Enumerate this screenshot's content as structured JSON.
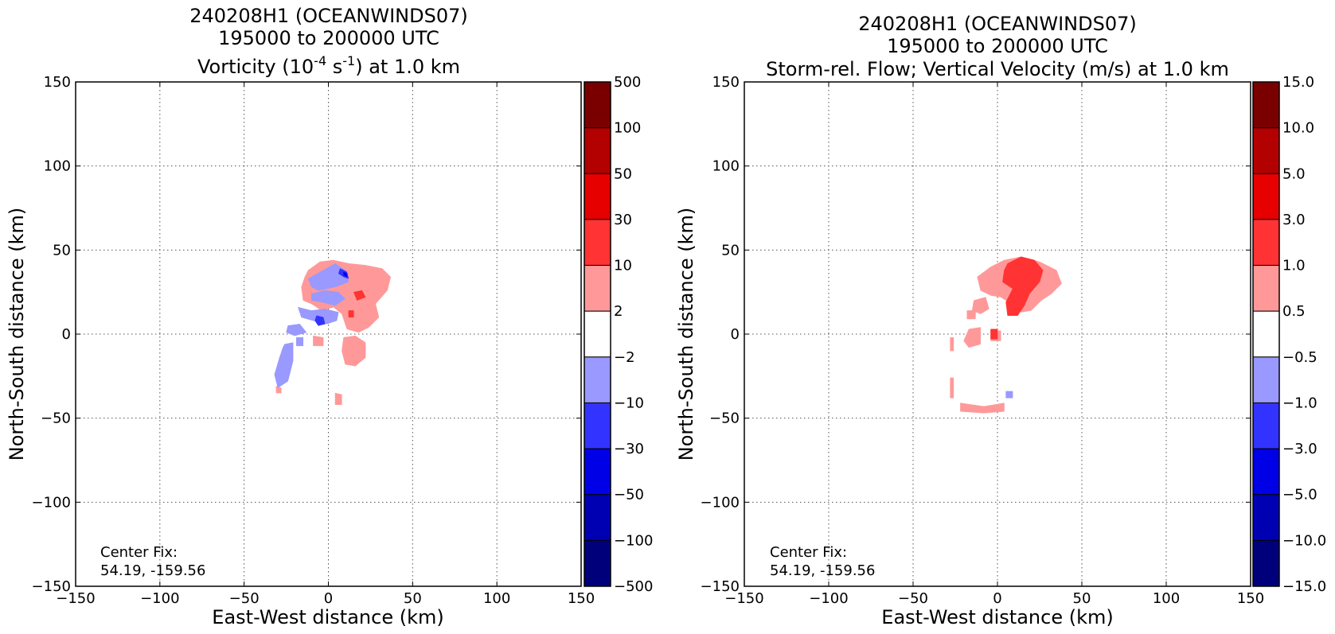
{
  "chart_data": [
    {
      "type": "heatmap",
      "title_lines": [
        "240208H1 (OCEANWINDS07)",
        "195000 to 200000 UTC"
      ],
      "title_line3": {
        "before": "Vorticity (10",
        "sup1": "-4",
        "middle": " s",
        "sup2": "-1",
        "after": ") at 1.0 km"
      },
      "xlabel": "East-West distance (km)",
      "ylabel": "North-South distance (km)",
      "xlim": [
        -150,
        150
      ],
      "ylim": [
        -150,
        150
      ],
      "xticks": [
        "−150",
        "−100",
        "−50",
        "0",
        "50",
        "100",
        "150"
      ],
      "yticks": [
        "150",
        "100",
        "50",
        "0",
        "−50",
        "−100",
        "−150"
      ],
      "grid": true,
      "annotation_lines": [
        "Center Fix:",
        "54.19, -159.56"
      ],
      "colorbar_labels": [
        "500",
        "100",
        "50",
        "30",
        "10",
        "2",
        "−2",
        "−10",
        "−30",
        "−50",
        "−100",
        "−500"
      ],
      "colorbar_colors": [
        "#7a0000",
        "#b30000",
        "#e60000",
        "#ff3333",
        "#ff9999",
        "#ffffff",
        "#9999ff",
        "#3333ff",
        "#0000e6",
        "#0000b3",
        "#00007a"
      ],
      "regions": [
        {
          "level": "2 to 10",
          "color": "#ff9999",
          "points": [
            [
              -12,
              38
            ],
            [
              -5,
              43
            ],
            [
              3,
              44
            ],
            [
              12,
              42
            ],
            [
              22,
              41
            ],
            [
              32,
              39
            ],
            [
              37,
              34
            ],
            [
              35,
              26
            ],
            [
              28,
              18
            ],
            [
              30,
              10
            ],
            [
              24,
              4
            ],
            [
              18,
              1
            ],
            [
              11,
              3
            ],
            [
              8,
              12
            ],
            [
              3,
              16
            ],
            [
              -4,
              14
            ],
            [
              -10,
              18
            ],
            [
              -15,
              20
            ],
            [
              -16,
              28
            ],
            [
              -14,
              34
            ]
          ]
        },
        {
          "level": "2 to 10",
          "color": "#ff9999",
          "points": [
            [
              9,
              -2
            ],
            [
              16,
              -1
            ],
            [
              22,
              -5
            ],
            [
              22,
              -14
            ],
            [
              16,
              -19
            ],
            [
              10,
              -18
            ],
            [
              8,
              -10
            ]
          ]
        },
        {
          "level": "2 to 10",
          "color": "#ff9999",
          "points": [
            [
              -9,
              -1
            ],
            [
              -3,
              -2
            ],
            [
              -3,
              -7
            ],
            [
              -9,
              -7
            ]
          ]
        },
        {
          "level": "2 to 10",
          "color": "#ff9999",
          "points": [
            [
              4,
              -35
            ],
            [
              8,
              -36
            ],
            [
              8,
              -42
            ],
            [
              4,
              -42
            ]
          ]
        },
        {
          "level": "2 to 10",
          "color": "#ff9999",
          "points": [
            [
              -31,
              -31
            ],
            [
              -28,
              -32
            ],
            [
              -28,
              -35
            ],
            [
              -31,
              -35
            ]
          ]
        },
        {
          "level": "10 to 30",
          "color": "#ff3333",
          "points": [
            [
              15,
              25
            ],
            [
              20,
              26
            ],
            [
              22,
              22
            ],
            [
              17,
              20
            ]
          ]
        },
        {
          "level": "10 to 30",
          "color": "#ff3333",
          "points": [
            [
              12,
              14
            ],
            [
              15,
              14
            ],
            [
              15,
              10
            ],
            [
              12,
              10
            ]
          ]
        },
        {
          "level": "-10 to -2",
          "color": "#9999ff",
          "points": [
            [
              -12,
              33
            ],
            [
              -3,
              38
            ],
            [
              4,
              42
            ],
            [
              10,
              38
            ],
            [
              12,
              31
            ],
            [
              4,
              28
            ],
            [
              -6,
              26
            ],
            [
              -10,
              28
            ]
          ]
        },
        {
          "level": "-10 to -2",
          "color": "#9999ff",
          "points": [
            [
              -10,
              24
            ],
            [
              -2,
              26
            ],
            [
              6,
              25
            ],
            [
              10,
              21
            ],
            [
              4,
              17
            ],
            [
              -4,
              19
            ],
            [
              -10,
              20
            ]
          ]
        },
        {
          "level": "-10 to -2",
          "color": "#9999ff",
          "points": [
            [
              -18,
              16
            ],
            [
              -10,
              14
            ],
            [
              -2,
              15
            ],
            [
              6,
              13
            ],
            [
              5,
              8
            ],
            [
              -1,
              6
            ],
            [
              -9,
              8
            ],
            [
              -16,
              10
            ]
          ]
        },
        {
          "level": "-10 to -2",
          "color": "#9999ff",
          "points": [
            [
              -24,
              5
            ],
            [
              -17,
              6
            ],
            [
              -13,
              1
            ],
            [
              -20,
              -1
            ],
            [
              -25,
              1
            ]
          ]
        },
        {
          "level": "-10 to -2",
          "color": "#9999ff",
          "points": [
            [
              -26,
              -6
            ],
            [
              -21,
              -5
            ],
            [
              -21,
              -16
            ],
            [
              -24,
              -28
            ],
            [
              -30,
              -32
            ],
            [
              -32,
              -24
            ],
            [
              -29,
              -14
            ],
            [
              -27,
              -8
            ]
          ]
        },
        {
          "level": "-10 to -2",
          "color": "#9999ff",
          "points": [
            [
              -19,
              -2
            ],
            [
              -15,
              -2
            ],
            [
              -15,
              -7
            ],
            [
              -19,
              -7
            ]
          ]
        },
        {
          "level": "-30 to -10",
          "color": "#3333ff",
          "points": [
            [
              7,
              39
            ],
            [
              11,
              37
            ],
            [
              12,
              33
            ],
            [
              9,
              34
            ],
            [
              6,
              36
            ]
          ]
        },
        {
          "level": "-30 to -10",
          "color": "#3333ff",
          "points": [
            [
              -7,
              11
            ],
            [
              -3,
              10
            ],
            [
              -2,
              6
            ],
            [
              -6,
              5
            ],
            [
              -8,
              8
            ]
          ]
        },
        {
          "level": "-50 to -30",
          "color": "#0000e6",
          "points": [
            [
              9,
              37
            ],
            [
              11,
              36
            ],
            [
              11,
              34
            ],
            [
              9,
              35
            ]
          ]
        }
      ]
    },
    {
      "type": "heatmap",
      "title_lines": [
        "240208H1 (OCEANWINDS07)",
        "195000 to 200000 UTC",
        "Storm-rel. Flow; Vertical Velocity (m/s) at 1.0 km"
      ],
      "xlabel": "East-West distance (km)",
      "ylabel": "North-South distance (km)",
      "xlim": [
        -150,
        150
      ],
      "ylim": [
        -150,
        150
      ],
      "xticks": [
        "−150",
        "−100",
        "−50",
        "0",
        "50",
        "100",
        "150"
      ],
      "yticks": [
        "150",
        "100",
        "50",
        "0",
        "−50",
        "−100",
        "−150"
      ],
      "grid": true,
      "annotation_lines": [
        "Center Fix:",
        "54.19, -159.56"
      ],
      "colorbar_labels": [
        "15.0",
        "10.0",
        "5.0",
        "3.0",
        "1.0",
        "0.5",
        "−0.5",
        "−1.0",
        "−3.0",
        "−5.0",
        "−10.0",
        "−15.0"
      ],
      "colorbar_colors": [
        "#7a0000",
        "#b30000",
        "#e60000",
        "#ff3333",
        "#ff9999",
        "#ffffff",
        "#9999ff",
        "#3333ff",
        "#0000e6",
        "#0000b3",
        "#00007a"
      ],
      "regions": [
        {
          "level": "0.5 to 1.0",
          "color": "#ff9999",
          "points": [
            [
              -12,
              34
            ],
            [
              -4,
              40
            ],
            [
              4,
              44
            ],
            [
              14,
              46
            ],
            [
              25,
              43
            ],
            [
              35,
              38
            ],
            [
              38,
              30
            ],
            [
              32,
              24
            ],
            [
              26,
              20
            ],
            [
              20,
              14
            ],
            [
              14,
              13
            ],
            [
              8,
              18
            ],
            [
              2,
              22
            ],
            [
              -4,
              23
            ],
            [
              -10,
              26
            ]
          ]
        },
        {
          "level": "0.5 to 1.0",
          "color": "#ff9999",
          "points": [
            [
              -14,
              20
            ],
            [
              -7,
              22
            ],
            [
              -5,
              15
            ],
            [
              -10,
              12
            ],
            [
              -15,
              14
            ]
          ]
        },
        {
          "level": "0.5 to 1.0",
          "color": "#ff9999",
          "points": [
            [
              -18,
              14
            ],
            [
              -13,
              14
            ],
            [
              -13,
              9
            ],
            [
              -18,
              9
            ]
          ]
        },
        {
          "level": "0.5 to 1.0",
          "color": "#ff9999",
          "points": [
            [
              -17,
              3
            ],
            [
              -10,
              4
            ],
            [
              -10,
              -6
            ],
            [
              -17,
              -8
            ],
            [
              -20,
              -4
            ]
          ]
        },
        {
          "level": "0.5 to 1.0",
          "color": "#ff9999",
          "points": [
            [
              -4,
              2
            ],
            [
              2,
              2
            ],
            [
              2,
              -4
            ],
            [
              -4,
              -4
            ]
          ]
        },
        {
          "level": "0.5 to 1.0",
          "color": "#ff9999",
          "points": [
            [
              -28,
              -26
            ],
            [
              -26,
              -26
            ],
            [
              -26,
              -38
            ],
            [
              -28,
              -38
            ]
          ]
        },
        {
          "level": "0.5 to 1.0",
          "color": "#ff9999",
          "points": [
            [
              -22,
              -41
            ],
            [
              -8,
              -43
            ],
            [
              4,
              -41
            ],
            [
              4,
              -46
            ],
            [
              -8,
              -47
            ],
            [
              -22,
              -46
            ]
          ]
        },
        {
          "level": "0.5 to 1.0",
          "color": "#ff9999",
          "points": [
            [
              -28,
              -2
            ],
            [
              -26,
              -2
            ],
            [
              -26,
              -10
            ],
            [
              -28,
              -10
            ]
          ]
        },
        {
          "level": "1.0 to 3.0",
          "color": "#ff3333",
          "points": [
            [
              6,
              42
            ],
            [
              14,
              46
            ],
            [
              22,
              44
            ],
            [
              27,
              38
            ],
            [
              25,
              31
            ],
            [
              19,
              24
            ],
            [
              16,
              17
            ],
            [
              12,
              11
            ],
            [
              6,
              11
            ],
            [
              5,
              19
            ],
            [
              9,
              27
            ],
            [
              3,
              31
            ],
            [
              4,
              38
            ]
          ]
        },
        {
          "level": "1.0 to 3.0",
          "color": "#ff3333",
          "points": [
            [
              -4,
              3
            ],
            [
              0,
              3
            ],
            [
              0,
              -3
            ],
            [
              -4,
              -3
            ]
          ]
        },
        {
          "level": "-1.0 to -0.5",
          "color": "#9999ff",
          "points": [
            [
              5,
              -34
            ],
            [
              9,
              -34
            ],
            [
              9,
              -38
            ],
            [
              5,
              -38
            ]
          ]
        }
      ]
    }
  ]
}
